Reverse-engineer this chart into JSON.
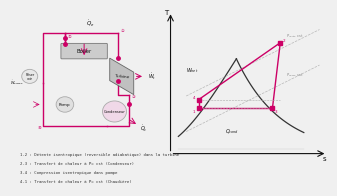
{
  "bg_color": "#f0f0f0",
  "pink": "#cc0066",
  "dark": "#111111",
  "gray": "#888888",
  "light_gray": "#dddddd",
  "legend_texts": [
    "1-2 : Détente isentropique (reversible adiabatique) dans la turbine",
    "2-3 : Transfert de chaleur à P= cst (Condenseur)",
    "3-4 : Compression isentropique dans pompe",
    "4-1 : Transfert de chaleur à P= cst (Chaudière)"
  ]
}
